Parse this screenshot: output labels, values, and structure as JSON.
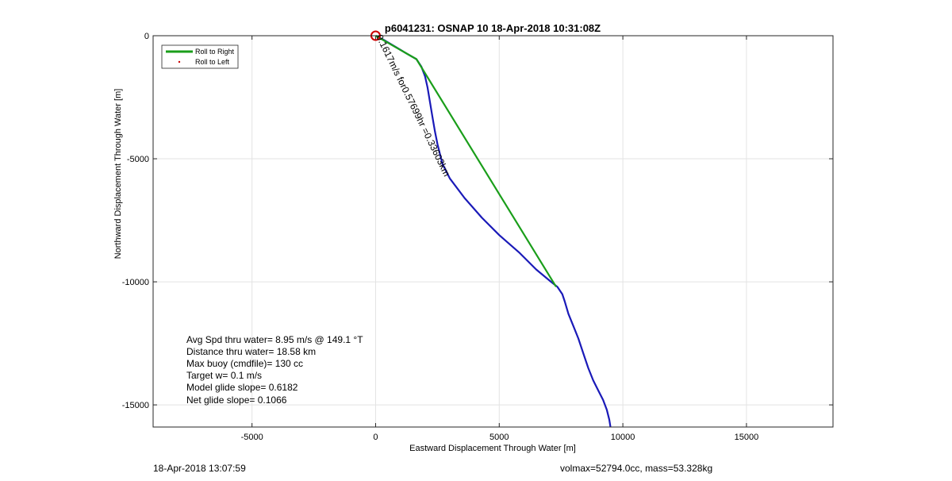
{
  "chart_data": {
    "type": "line",
    "title": "p6041231: OSNAP 10 18-Apr-2018 10:31:08Z",
    "xlabel": "Eastward Displacement Through Water [m]",
    "ylabel": "Northward Displacement Through Water [m]",
    "xlim": [
      -9000,
      18500
    ],
    "ylim": [
      -15900,
      0
    ],
    "xticks": [
      -5000,
      0,
      5000,
      10000,
      15000
    ],
    "yticks": [
      0,
      -5000,
      -10000,
      -15000
    ],
    "grid": true,
    "legend": {
      "position": "top-left",
      "entries": [
        {
          "label": "Roll to Right",
          "color": "#1a9e1a",
          "style": "line"
        },
        {
          "label": "Roll to Left",
          "color": "#cc0000",
          "style": "dot"
        }
      ]
    },
    "series": [
      {
        "color": "#1a1ab8",
        "x": [
          0,
          300,
          800,
          1300,
          1650,
          1850,
          2000,
          2100,
          2200,
          2300,
          2400,
          2500,
          2700,
          3000,
          3600,
          4300,
          5000,
          5800,
          6500,
          7100,
          7350,
          7550,
          7650,
          7800,
          8000,
          8200,
          8400,
          8600,
          8800,
          9000,
          9200,
          9350,
          9450,
          9500
        ],
        "y": [
          0,
          -150,
          -450,
          -750,
          -950,
          -1250,
          -1650,
          -2100,
          -2700,
          -3300,
          -3900,
          -4400,
          -5200,
          -5800,
          -6600,
          -7400,
          -8100,
          -8800,
          -9500,
          -10000,
          -10200,
          -10500,
          -10800,
          -11300,
          -11800,
          -12300,
          -12900,
          -13500,
          -14000,
          -14400,
          -14800,
          -15200,
          -15600,
          -15900
        ]
      },
      {
        "color": "#1a9e1a",
        "x": [
          0,
          1650,
          7300
        ],
        "y": [
          0,
          -950,
          -10200
        ]
      }
    ],
    "markers": [
      {
        "type": "circle",
        "x": 0,
        "y": 0,
        "color": "#cc0000"
      }
    ],
    "annotations": {
      "segment_label": "0.1617m/s for0.57699hr =0.33603km",
      "stats": [
        "Avg Spd thru water=  8.95 m/s @ 149.1 °T",
        "Distance thru water= 18.58 km",
        "Max buoy (cmdfile)= 130 cc",
        "Target w= 0.1 m/s",
        "Model glide slope= 0.6182",
        "Net glide slope= 0.1066"
      ]
    }
  },
  "footer": {
    "timestamp": "18-Apr-2018 13:07:59",
    "vol_mass": "volmax=52794.0cc, mass=53.328kg"
  }
}
